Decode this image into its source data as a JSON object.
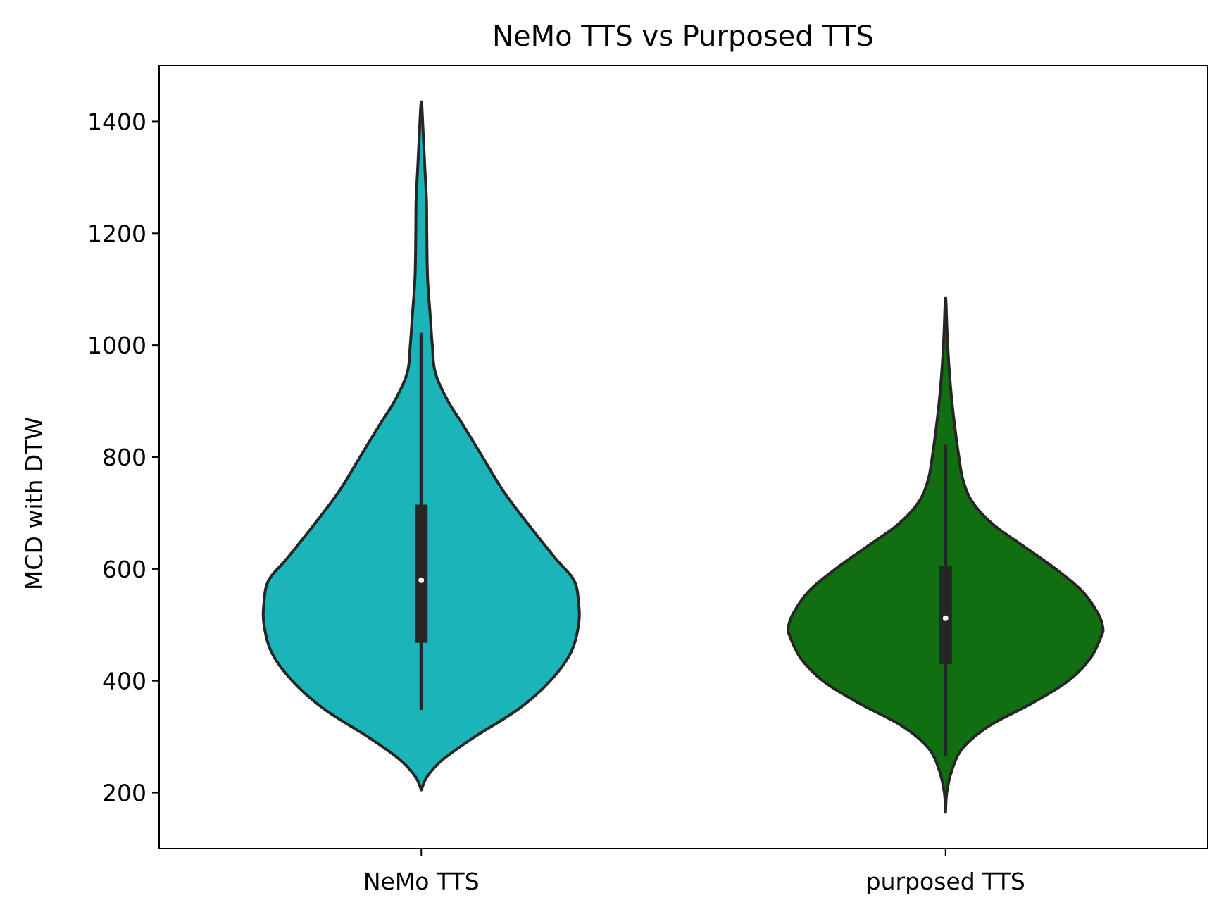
{
  "chart_data": {
    "type": "violin",
    "title": "NeMo TTS vs Purposed TTS",
    "xlabel": "",
    "ylabel": "MCD with DTW",
    "ylim": [
      100,
      1500
    ],
    "yticks": [
      200,
      400,
      600,
      800,
      1000,
      1200,
      1400
    ],
    "grid": false,
    "legend": "none",
    "categories": [
      "NeMo TTS",
      "purposed TTS"
    ],
    "series": [
      {
        "category": "NeMo TTS",
        "color": "#1bb5b9",
        "min": 205,
        "max": 1435,
        "whisker_low": 348,
        "whisker_high": 1022,
        "q1": 468,
        "median": 580,
        "q3": 715,
        "density_profile": [
          [
            205,
            0.0
          ],
          [
            230,
            0.04
          ],
          [
            260,
            0.14
          ],
          [
            300,
            0.34
          ],
          [
            350,
            0.62
          ],
          [
            400,
            0.82
          ],
          [
            450,
            0.95
          ],
          [
            500,
            1.0
          ],
          [
            540,
            1.0
          ],
          [
            580,
            0.97
          ],
          [
            620,
            0.85
          ],
          [
            680,
            0.68
          ],
          [
            740,
            0.52
          ],
          [
            800,
            0.39
          ],
          [
            860,
            0.26
          ],
          [
            900,
            0.17
          ],
          [
            950,
            0.09
          ],
          [
            1000,
            0.07
          ],
          [
            1060,
            0.055
          ],
          [
            1120,
            0.04
          ],
          [
            1200,
            0.035
          ],
          [
            1260,
            0.033
          ],
          [
            1320,
            0.022
          ],
          [
            1380,
            0.012
          ],
          [
            1435,
            0.0
          ]
        ]
      },
      {
        "category": "purposed TTS",
        "color": "#116e11",
        "min": 165,
        "max": 1085,
        "whisker_low": 265,
        "whisker_high": 822,
        "q1": 430,
        "median": 512,
        "q3": 605,
        "density_profile": [
          [
            165,
            0.0
          ],
          [
            200,
            0.008
          ],
          [
            240,
            0.04
          ],
          [
            280,
            0.11
          ],
          [
            320,
            0.28
          ],
          [
            360,
            0.55
          ],
          [
            400,
            0.78
          ],
          [
            440,
            0.92
          ],
          [
            480,
            0.99
          ],
          [
            495,
            1.0
          ],
          [
            520,
            0.97
          ],
          [
            560,
            0.87
          ],
          [
            600,
            0.7
          ],
          [
            640,
            0.5
          ],
          [
            680,
            0.3
          ],
          [
            720,
            0.17
          ],
          [
            760,
            0.11
          ],
          [
            800,
            0.085
          ],
          [
            840,
            0.065
          ],
          [
            900,
            0.04
          ],
          [
            960,
            0.022
          ],
          [
            1020,
            0.01
          ],
          [
            1085,
            0.0
          ]
        ]
      }
    ]
  }
}
